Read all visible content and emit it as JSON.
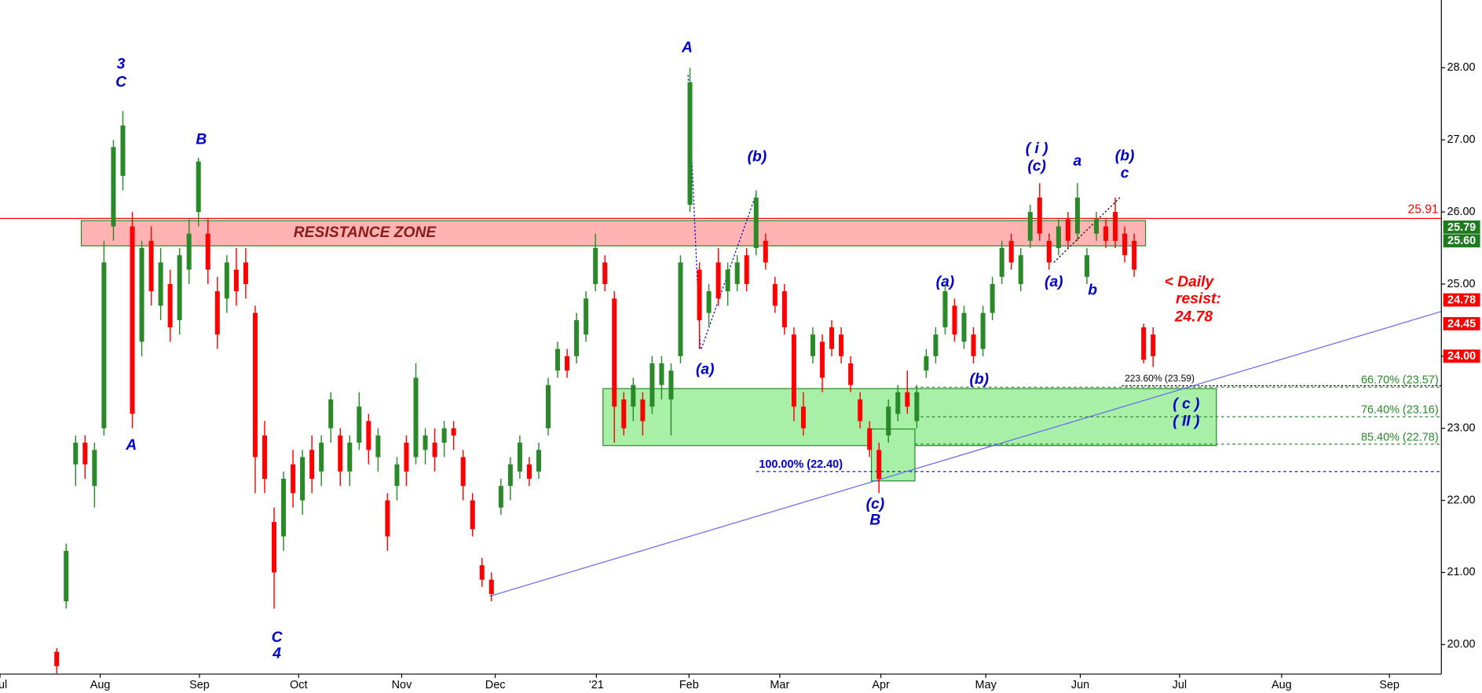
{
  "chart_data": {
    "type": "candlestick",
    "colors": {
      "up": "#2a8a2a",
      "down": "#ff0000"
    },
    "xlim": [
      -6,
      146.5
    ],
    "ylim": [
      19.59,
      28.94
    ],
    "yticks": [
      {
        "value": 20,
        "label": "20.00"
      },
      {
        "value": 21,
        "label": "21.00"
      },
      {
        "value": 22,
        "label": "22.00"
      },
      {
        "value": 23,
        "label": "23.00"
      },
      {
        "value": 24,
        "label": "24.00"
      },
      {
        "value": 25,
        "label": "25.00"
      },
      {
        "value": 26,
        "label": "26.00"
      },
      {
        "value": 27,
        "label": "27.00"
      },
      {
        "value": 28,
        "label": "28.00"
      }
    ],
    "xticks": [
      {
        "value": -6,
        "label": "Jul"
      },
      {
        "value": 4.6,
        "label": "Aug"
      },
      {
        "value": 15.1,
        "label": "Sep"
      },
      {
        "value": 25.6,
        "label": "Oct"
      },
      {
        "value": 36.5,
        "label": "Nov"
      },
      {
        "value": 46.4,
        "label": "Dec"
      },
      {
        "value": 57.1,
        "label": "'21"
      },
      {
        "value": 66.9,
        "label": "Feb"
      },
      {
        "value": 76.5,
        "label": "Mar"
      },
      {
        "value": 87.2,
        "label": "Apr"
      },
      {
        "value": 98.3,
        "label": "May"
      },
      {
        "value": 108.3,
        "label": "Jun"
      },
      {
        "value": 118.8,
        "label": "Jul"
      },
      {
        "value": 129.6,
        "label": "Aug"
      },
      {
        "value": 141,
        "label": "Sep"
      }
    ],
    "ohlc": [
      [
        19.9,
        19.95,
        19.6,
        19.7
      ],
      [
        20.6,
        21.4,
        20.5,
        21.3
      ],
      [
        22.5,
        22.9,
        22.2,
        22.8
      ],
      [
        22.8,
        22.9,
        22.3,
        22.5
      ],
      [
        22.2,
        22.8,
        21.9,
        22.7
      ],
      [
        23.0,
        25.6,
        22.9,
        25.3
      ],
      [
        25.8,
        27.0,
        25.6,
        26.9
      ],
      [
        26.5,
        27.4,
        26.3,
        27.2
      ],
      [
        25.8,
        26.0,
        23.0,
        23.2
      ],
      [
        24.2,
        25.6,
        24.0,
        25.5
      ],
      [
        25.6,
        25.8,
        24.7,
        24.9
      ],
      [
        24.7,
        25.5,
        24.5,
        25.3
      ],
      [
        25.0,
        25.2,
        24.2,
        24.4
      ],
      [
        24.5,
        25.5,
        24.3,
        25.4
      ],
      [
        25.2,
        25.9,
        25.0,
        25.7
      ],
      [
        26.0,
        26.75,
        25.8,
        26.7
      ],
      [
        25.7,
        25.9,
        25.0,
        25.2
      ],
      [
        24.9,
        25.1,
        24.1,
        24.3
      ],
      [
        24.8,
        25.4,
        24.6,
        25.3
      ],
      [
        25.2,
        25.5,
        24.7,
        24.9
      ],
      [
        25.3,
        25.5,
        24.8,
        25.0
      ],
      [
        24.6,
        24.7,
        22.1,
        22.6
      ],
      [
        22.9,
        23.1,
        22.1,
        22.3
      ],
      [
        21.7,
        21.9,
        20.5,
        21.0
      ],
      [
        21.5,
        22.4,
        21.3,
        22.3
      ],
      [
        22.5,
        22.7,
        21.9,
        22.1
      ],
      [
        22.0,
        22.7,
        21.8,
        22.6
      ],
      [
        22.7,
        22.9,
        22.1,
        22.3
      ],
      [
        22.4,
        22.9,
        22.2,
        22.8
      ],
      [
        23.0,
        23.5,
        22.8,
        23.4
      ],
      [
        22.9,
        23.0,
        22.2,
        22.4
      ],
      [
        22.4,
        22.9,
        22.2,
        22.8
      ],
      [
        22.8,
        23.5,
        22.7,
        23.3
      ],
      [
        23.1,
        23.2,
        22.5,
        22.7
      ],
      [
        22.6,
        23.0,
        22.4,
        22.9
      ],
      [
        22.0,
        22.1,
        21.3,
        21.5
      ],
      [
        22.2,
        22.6,
        22.0,
        22.5
      ],
      [
        22.8,
        22.9,
        22.2,
        22.4
      ],
      [
        22.6,
        23.9,
        22.5,
        23.7
      ],
      [
        22.7,
        23.0,
        22.5,
        22.9
      ],
      [
        22.8,
        23.0,
        22.4,
        22.6
      ],
      [
        22.8,
        23.1,
        22.6,
        23.0
      ],
      [
        23.0,
        23.1,
        22.7,
        22.9
      ],
      [
        22.6,
        22.7,
        22.0,
        22.2
      ],
      [
        22.0,
        22.1,
        21.5,
        21.6
      ],
      [
        21.1,
        21.2,
        20.8,
        20.9
      ],
      [
        20.9,
        21.0,
        20.6,
        20.7
      ],
      [
        21.9,
        22.3,
        21.8,
        22.2
      ],
      [
        22.2,
        22.6,
        22.0,
        22.5
      ],
      [
        22.4,
        22.9,
        22.3,
        22.8
      ],
      [
        22.5,
        22.6,
        22.2,
        22.3
      ],
      [
        22.4,
        22.8,
        22.3,
        22.7
      ],
      [
        23.0,
        23.7,
        22.9,
        23.6
      ],
      [
        23.8,
        24.2,
        23.7,
        24.1
      ],
      [
        24.0,
        24.1,
        23.7,
        23.8
      ],
      [
        24.0,
        24.6,
        23.9,
        24.5
      ],
      [
        24.3,
        24.9,
        24.2,
        24.8
      ],
      [
        25.0,
        25.7,
        24.9,
        25.5
      ],
      [
        25.3,
        25.4,
        24.9,
        25.0
      ],
      [
        24.8,
        24.9,
        22.8,
        23.3
      ],
      [
        23.4,
        23.5,
        22.9,
        23.0
      ],
      [
        23.3,
        23.7,
        23.1,
        23.6
      ],
      [
        23.4,
        23.5,
        22.9,
        23.1
      ],
      [
        23.3,
        24.0,
        23.2,
        23.9
      ],
      [
        23.6,
        24.0,
        23.4,
        23.9
      ],
      [
        23.4,
        23.9,
        22.9,
        23.8
      ],
      [
        24.0,
        25.4,
        23.9,
        25.3
      ],
      [
        26.1,
        28.0,
        26.0,
        27.8
      ],
      [
        25.2,
        25.3,
        24.1,
        24.5
      ],
      [
        24.6,
        25.0,
        24.4,
        24.9
      ],
      [
        25.3,
        25.5,
        24.7,
        24.8
      ],
      [
        24.9,
        25.3,
        24.7,
        25.2
      ],
      [
        25.0,
        25.4,
        24.9,
        25.3
      ],
      [
        25.4,
        25.5,
        24.9,
        25.0
      ],
      [
        25.5,
        26.3,
        25.4,
        26.2
      ],
      [
        25.6,
        25.7,
        25.2,
        25.3
      ],
      [
        25.0,
        25.1,
        24.6,
        24.7
      ],
      [
        24.9,
        25.0,
        24.3,
        24.4
      ],
      [
        24.3,
        24.4,
        23.1,
        23.3
      ],
      [
        23.3,
        23.5,
        22.9,
        23.0
      ],
      [
        24.0,
        24.4,
        23.9,
        24.3
      ],
      [
        24.2,
        24.3,
        23.5,
        23.7
      ],
      [
        24.4,
        24.5,
        24.0,
        24.1
      ],
      [
        24.3,
        24.4,
        23.9,
        24.0
      ],
      [
        23.9,
        24.0,
        23.5,
        23.6
      ],
      [
        23.4,
        23.5,
        23.0,
        23.1
      ],
      [
        23.0,
        23.1,
        22.6,
        22.7
      ],
      [
        22.7,
        22.8,
        22.1,
        22.3
      ],
      [
        22.9,
        23.4,
        22.8,
        23.3
      ],
      [
        23.2,
        23.6,
        23.1,
        23.5
      ],
      [
        23.5,
        23.8,
        23.2,
        23.3
      ],
      [
        23.1,
        23.6,
        23.0,
        23.5
      ],
      [
        23.8,
        24.1,
        23.7,
        24.0
      ],
      [
        24.0,
        24.4,
        23.9,
        24.3
      ],
      [
        24.4,
        25.0,
        24.3,
        24.9
      ],
      [
        24.7,
        24.8,
        24.2,
        24.3
      ],
      [
        24.2,
        24.7,
        24.1,
        24.6
      ],
      [
        24.3,
        24.4,
        23.9,
        24.0
      ],
      [
        24.1,
        24.7,
        24.0,
        24.6
      ],
      [
        24.6,
        25.1,
        24.5,
        25.0
      ],
      [
        25.1,
        25.6,
        25.0,
        25.5
      ],
      [
        25.6,
        25.7,
        25.2,
        25.3
      ],
      [
        25.0,
        25.5,
        24.9,
        25.4
      ],
      [
        25.6,
        26.1,
        25.5,
        26.0
      ],
      [
        26.2,
        26.4,
        25.6,
        25.7
      ],
      [
        25.6,
        25.7,
        25.2,
        25.3
      ],
      [
        25.5,
        25.9,
        25.4,
        25.8
      ],
      [
        25.9,
        26.0,
        25.5,
        25.6
      ],
      [
        25.7,
        26.4,
        25.6,
        26.2
      ],
      [
        25.1,
        25.5,
        25.0,
        25.4
      ],
      [
        25.7,
        26.0,
        25.6,
        25.9
      ],
      [
        25.8,
        25.9,
        25.5,
        25.6
      ],
      [
        26.0,
        26.2,
        25.5,
        25.6
      ],
      [
        25.7,
        25.8,
        25.3,
        25.4
      ],
      [
        25.6,
        25.7,
        25.1,
        25.2
      ],
      [
        24.4,
        24.45,
        23.9,
        23.95
      ],
      [
        24.3,
        24.4,
        23.85,
        24.0
      ]
    ],
    "zones": [
      {
        "x": [
          2.6,
          115.2
        ],
        "y": [
          25.53,
          25.88
        ],
        "fill": "#ffb3b3",
        "stroke": "#2a8a2a"
      },
      {
        "x": [
          57.8,
          122.7
        ],
        "y": [
          22.76,
          23.55
        ],
        "fill": "#a8f0a8",
        "stroke": "#2a8a2a"
      },
      {
        "x": [
          86.2,
          90.8
        ],
        "y": [
          22.27,
          22.99
        ],
        "fill": "#a8f0a8",
        "stroke": "#2a8a2a"
      }
    ],
    "hlines": [
      {
        "y": 25.91,
        "x": [
          -6,
          146.5
        ],
        "color": "#ff0000",
        "dash": "none"
      },
      {
        "y": 23.59,
        "x": [
          112.7,
          146.5
        ],
        "color": "#000000",
        "dash": "2,2",
        "label": "223.60% (23.59)",
        "label_side": "left",
        "label_color": "#000000"
      },
      {
        "y": 23.57,
        "x": [
          90.8,
          146.5
        ],
        "color": "#2a8a2a",
        "dash": "3,3",
        "label": "66.70% (23.57)",
        "label_side": "right",
        "label_color": "#2a8a2a"
      },
      {
        "y": 23.16,
        "x": [
          90.8,
          146.5
        ],
        "color": "#2a8a2a",
        "dash": "3,3",
        "label": "76.40% (23.16)",
        "label_side": "right",
        "label_color": "#2a8a2a"
      },
      {
        "y": 22.78,
        "x": [
          90.8,
          146.5
        ],
        "color": "#2a8a2a",
        "dash": "3,3",
        "label": "85.40% (22.78)",
        "label_side": "right",
        "label_color": "#2a8a2a"
      },
      {
        "y": 22.4,
        "x": [
          74,
          146.5
        ],
        "color": "#0000cc",
        "dash": "3,3",
        "label": "100.00% (22.40)",
        "label_side": "left",
        "label_color": "#0000cc"
      }
    ],
    "trend_lines": [
      {
        "x": [
          45.8,
          146.5
        ],
        "y": [
          20.67,
          24.62
        ],
        "color": "#6666ee",
        "dash": "none"
      },
      {
        "x": [
          66.8,
          68.1
        ],
        "y": [
          27.9,
          24.1
        ],
        "color": "#0000cc",
        "dash": "2,2"
      },
      {
        "x": [
          68.2,
          74
        ],
        "y": [
          24.1,
          26.25
        ],
        "color": "#0000cc",
        "dash": "2,2"
      },
      {
        "x": [
          105.5,
          112.5
        ],
        "y": [
          25.3,
          26.2
        ],
        "color": "#000000",
        "dash": "2,2"
      }
    ],
    "annotations": [
      {
        "text": "3",
        "x": 6.8,
        "y": 28.04,
        "color": "#0000cc"
      },
      {
        "text": "C",
        "x": 6.8,
        "y": 27.79,
        "color": "#0000cc"
      },
      {
        "text": "B",
        "x": 15.3,
        "y": 27.0,
        "color": "#0000cc"
      },
      {
        "text": "A",
        "x": 7.9,
        "y": 22.76,
        "color": "#0000cc"
      },
      {
        "text": "C",
        "x": 23.3,
        "y": 20.09,
        "color": "#0000cc"
      },
      {
        "text": "4",
        "x": 23.3,
        "y": 19.87,
        "color": "#0000cc"
      },
      {
        "text": "A",
        "x": 66.7,
        "y": 28.27,
        "color": "#0000cc"
      },
      {
        "text": "(b)",
        "x": 74.1,
        "y": 26.76,
        "color": "#0000cc"
      },
      {
        "text": "(a)",
        "x": 68.6,
        "y": 23.81,
        "color": "#0000cc"
      },
      {
        "text": "(c)",
        "x": 86.6,
        "y": 21.94,
        "color": "#0000cc"
      },
      {
        "text": "B",
        "x": 86.6,
        "y": 21.72,
        "color": "#0000cc"
      },
      {
        "text": "(a)",
        "x": 94,
        "y": 25.02,
        "color": "#0000cc"
      },
      {
        "text": "(b)",
        "x": 97.6,
        "y": 23.67,
        "color": "#0000cc"
      },
      {
        "text": "( i )",
        "x": 103.7,
        "y": 26.87,
        "color": "#0000cc"
      },
      {
        "text": "(c)",
        "x": 103.7,
        "y": 26.63,
        "color": "#0000cc"
      },
      {
        "text": "(a)",
        "x": 105.5,
        "y": 25.02,
        "color": "#0000cc"
      },
      {
        "text": "a",
        "x": 108,
        "y": 26.7,
        "color": "#0000cc"
      },
      {
        "text": "b",
        "x": 109.6,
        "y": 24.91,
        "color": "#0000cc"
      },
      {
        "text": "(b)",
        "x": 113,
        "y": 26.77,
        "color": "#0000cc"
      },
      {
        "text": "c",
        "x": 113,
        "y": 26.53,
        "color": "#0000cc"
      },
      {
        "text": "( c )",
        "x": 119.5,
        "y": 23.33,
        "color": "#0000cc"
      },
      {
        "text": "( II )",
        "x": 119.5,
        "y": 23.09,
        "color": "#0000cc"
      },
      {
        "text": "RESISTANCE ZONE",
        "x": 32.6,
        "y": 25.71,
        "color": "#8b1a1a"
      },
      {
        "text": "<  Daily",
        "x": 119.8,
        "y": 25.02,
        "color": "#ff0000"
      },
      {
        "text": "resist:",
        "x": 120.8,
        "y": 24.79,
        "color": "#ff0000"
      },
      {
        "text": "24.78",
        "x": 120.3,
        "y": 24.54,
        "color": "#ff0000"
      }
    ],
    "price_tags": [
      {
        "value": 25.79,
        "label": "25.79",
        "color": "#1f7a1f"
      },
      {
        "value": 25.6,
        "label": "25.60",
        "color": "#1f7a1f"
      },
      {
        "value": 24.78,
        "label": "24.78",
        "color": "#ff0000"
      },
      {
        "value": 24.45,
        "label": "24.45",
        "color": "#ff0000"
      },
      {
        "value": 24.0,
        "label": "24.00",
        "color": "#ff0000"
      }
    ]
  }
}
